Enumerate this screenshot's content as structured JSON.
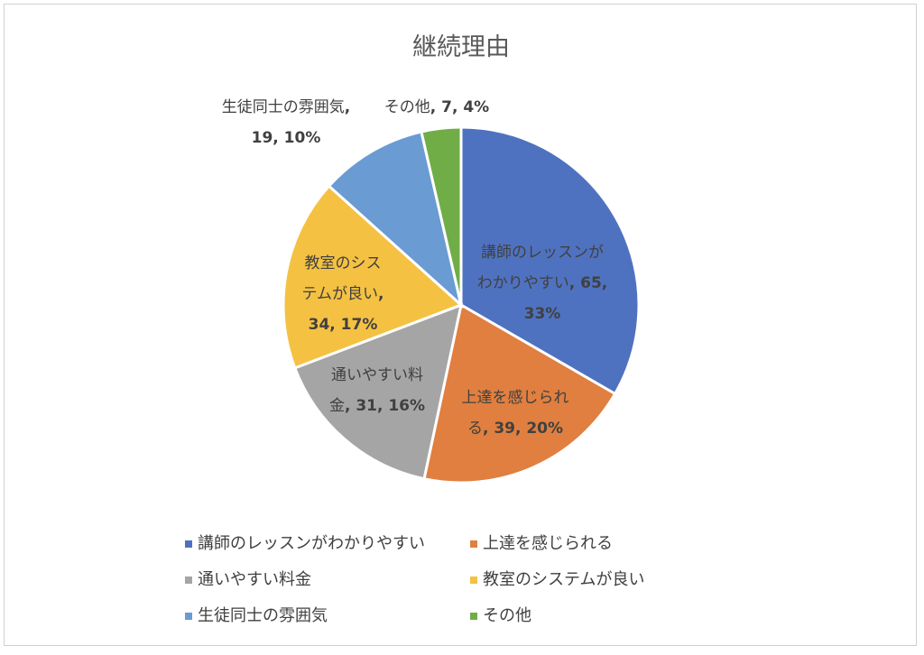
{
  "chart_data": {
    "type": "pie",
    "title": "継続理由",
    "slices": [
      {
        "name": "講師のレッスンがわかりやすい",
        "value": 65,
        "percent": "33%",
        "color": "#4f72c0"
      },
      {
        "name": "上達を感じられる",
        "value": 39,
        "percent": "20%",
        "color": "#e07f3f"
      },
      {
        "name": "通いやすい料金",
        "value": 31,
        "percent": "16%",
        "color": "#a5a5a5"
      },
      {
        "name": "教室のシステムが良い",
        "value": 34,
        "percent": "17%",
        "color": "#f4c142"
      },
      {
        "name": "生徒同士の雰囲気",
        "value": 19,
        "percent": "10%",
        "color": "#6a9bd2"
      },
      {
        "name": "その他",
        "value": 7,
        "percent": "4%",
        "color": "#70ad47"
      }
    ],
    "legend_position": "bottom"
  }
}
